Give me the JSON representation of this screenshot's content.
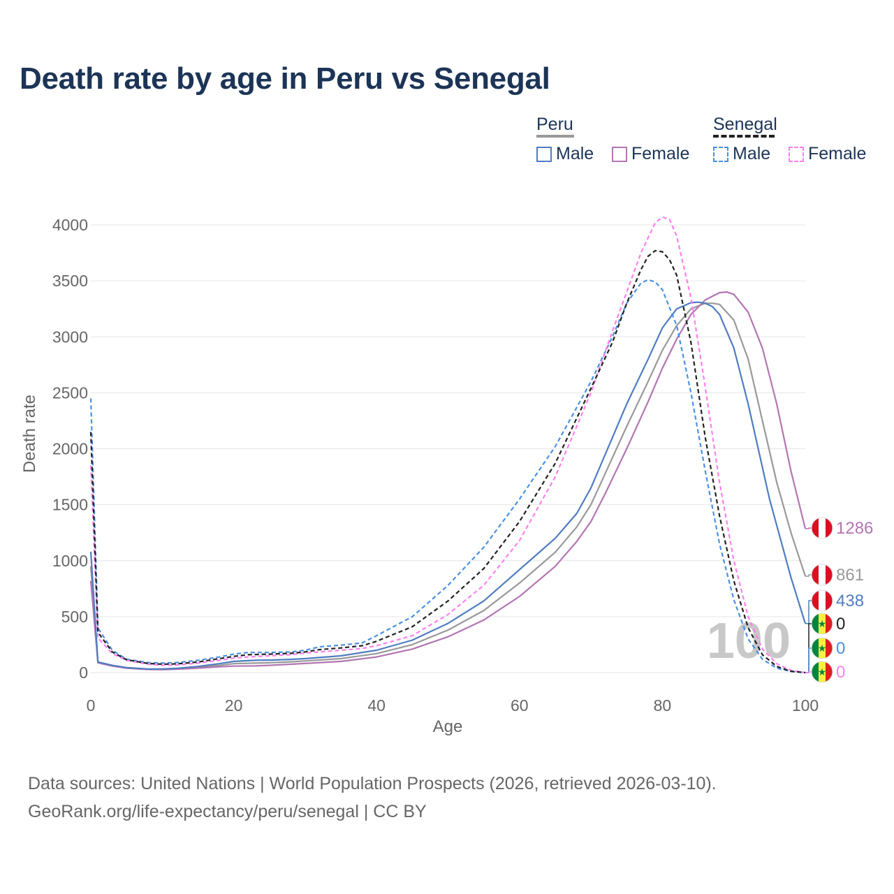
{
  "title": "Death rate by age in Peru vs Senegal",
  "legend": {
    "groups": [
      {
        "name": "Peru",
        "line_color": "#999999",
        "dashed": false
      },
      {
        "name": "Senegal",
        "line_color": "#222222",
        "dashed": true
      }
    ],
    "items": [
      {
        "label": "Male",
        "color": "#4f7cc0",
        "dashed": false
      },
      {
        "label": "Female",
        "color": "#b276b2",
        "dashed": false
      },
      {
        "label": "Male",
        "color": "#4a90e2",
        "dashed": true
      },
      {
        "label": "Female",
        "color": "#ff80ee",
        "dashed": true
      }
    ]
  },
  "footer": {
    "line1": "Data sources: United Nations | World Population Prospects (2026, retrieved 2026-03-10).",
    "line2": "GeoRank.org/life-expectancy/peru/senegal | CC BY"
  },
  "chart_data": {
    "type": "line",
    "xlabel": "Age",
    "ylabel": "Death rate",
    "xlim": [
      0,
      100
    ],
    "ylim": [
      0,
      4000
    ],
    "x_ticks": [
      "0",
      "20",
      "40",
      "60",
      "80",
      "100"
    ],
    "y_ticks": [
      "0",
      "500",
      "1000",
      "1500",
      "2000",
      "2500",
      "3000",
      "3500",
      "4000"
    ],
    "watermark": "100",
    "series": [
      {
        "name": "Peru Male",
        "color": "#4f7cc0",
        "dashed": false,
        "flag": "peru",
        "end_label": "438",
        "x": [
          0,
          1,
          3,
          5,
          8,
          10,
          12,
          15,
          18,
          20,
          23,
          25,
          28,
          30,
          35,
          40,
          45,
          50,
          55,
          60,
          65,
          68,
          70,
          72,
          75,
          78,
          80,
          82,
          84,
          85,
          86,
          87,
          88,
          90,
          92,
          95,
          98,
          100
        ],
        "y": [
          1080,
          95,
          65,
          45,
          32,
          32,
          38,
          55,
          80,
          100,
          110,
          112,
          118,
          125,
          150,
          200,
          290,
          440,
          640,
          920,
          1200,
          1420,
          1650,
          1950,
          2400,
          2800,
          3080,
          3250,
          3305,
          3310,
          3300,
          3270,
          3200,
          2900,
          2400,
          1550,
          850,
          438
        ]
      },
      {
        "name": "Peru Female",
        "color": "#b276b2",
        "dashed": false,
        "flag": "peru",
        "end_label": "1286",
        "x": [
          0,
          1,
          3,
          5,
          8,
          10,
          12,
          15,
          18,
          20,
          23,
          25,
          28,
          30,
          35,
          40,
          45,
          50,
          55,
          60,
          65,
          68,
          70,
          72,
          75,
          78,
          80,
          82,
          84,
          86,
          88,
          89,
          90,
          92,
          94,
          96,
          98,
          100
        ],
        "y": [
          820,
          88,
          58,
          40,
          28,
          26,
          30,
          40,
          52,
          58,
          60,
          65,
          75,
          82,
          100,
          140,
          210,
          320,
          470,
          680,
          950,
          1170,
          1350,
          1600,
          2000,
          2420,
          2720,
          2980,
          3200,
          3330,
          3395,
          3400,
          3380,
          3220,
          2900,
          2400,
          1800,
          1286
        ]
      },
      {
        "name": "Peru Total",
        "color": "#999999",
        "dashed": false,
        "flag": "peru",
        "end_label": "861",
        "x": [
          0,
          1,
          3,
          5,
          8,
          10,
          12,
          15,
          18,
          20,
          23,
          25,
          28,
          30,
          35,
          40,
          45,
          50,
          55,
          60,
          65,
          68,
          70,
          72,
          75,
          78,
          80,
          82,
          84,
          86,
          87,
          88,
          90,
          92,
          94,
          96,
          98,
          100
        ],
        "y": [
          950,
          92,
          62,
          43,
          30,
          29,
          34,
          48,
          65,
          80,
          85,
          88,
          96,
          104,
          125,
          170,
          250,
          380,
          555,
          800,
          1075,
          1300,
          1500,
          1780,
          2200,
          2600,
          2880,
          3100,
          3250,
          3300,
          3300,
          3290,
          3150,
          2800,
          2250,
          1700,
          1250,
          861
        ]
      },
      {
        "name": "Senegal Male",
        "color": "#4a90e2",
        "dashed": true,
        "flag": "senegal",
        "end_label": "0",
        "x": [
          0,
          1,
          3,
          5,
          8,
          10,
          12,
          15,
          18,
          20,
          22,
          25,
          28,
          30,
          32,
          35,
          38,
          40,
          45,
          50,
          55,
          60,
          65,
          70,
          73,
          75,
          77,
          78,
          79,
          80,
          82,
          84,
          86,
          88,
          90,
          92,
          94,
          96,
          98,
          100
        ],
        "y": [
          2450,
          400,
          200,
          120,
          90,
          85,
          90,
          110,
          140,
          165,
          180,
          180,
          185,
          200,
          230,
          245,
          265,
          330,
          500,
          780,
          1120,
          1550,
          2020,
          2600,
          3000,
          3300,
          3480,
          3510,
          3490,
          3420,
          3100,
          2500,
          1800,
          1150,
          650,
          300,
          120,
          40,
          10,
          0
        ]
      },
      {
        "name": "Senegal Female",
        "color": "#ff80ee",
        "dashed": true,
        "flag": "senegal",
        "end_label": "0",
        "x": [
          0,
          1,
          3,
          5,
          8,
          10,
          12,
          15,
          18,
          20,
          22,
          25,
          28,
          30,
          32,
          35,
          38,
          40,
          45,
          50,
          55,
          60,
          65,
          70,
          73,
          75,
          77,
          79,
          80,
          81,
          82,
          84,
          86,
          88,
          90,
          92,
          94,
          96,
          98,
          100
        ],
        "y": [
          1850,
          310,
          170,
          110,
          75,
          65,
          68,
          85,
          110,
          130,
          140,
          150,
          160,
          175,
          185,
          200,
          215,
          240,
          330,
          520,
          780,
          1180,
          1750,
          2500,
          3050,
          3400,
          3750,
          4020,
          4070,
          4050,
          3900,
          3350,
          2550,
          1700,
          1000,
          500,
          210,
          80,
          20,
          0
        ]
      },
      {
        "name": "Senegal Total",
        "color": "#222222",
        "dashed": true,
        "flag": "senegal",
        "end_label": "0",
        "x": [
          0,
          1,
          3,
          5,
          8,
          10,
          12,
          15,
          18,
          20,
          22,
          25,
          28,
          30,
          32,
          35,
          38,
          40,
          45,
          50,
          55,
          60,
          65,
          70,
          73,
          75,
          77,
          78,
          79,
          80,
          81,
          82,
          84,
          86,
          88,
          90,
          92,
          94,
          96,
          98,
          100
        ],
        "y": [
          2150,
          360,
          185,
          115,
          82,
          75,
          78,
          95,
          125,
          145,
          160,
          165,
          172,
          185,
          205,
          220,
          240,
          280,
          410,
          640,
          930,
          1350,
          1870,
          2540,
          2950,
          3300,
          3600,
          3720,
          3770,
          3760,
          3690,
          3550,
          2950,
          2100,
          1400,
          820,
          400,
          160,
          55,
          12,
          0
        ]
      }
    ]
  }
}
